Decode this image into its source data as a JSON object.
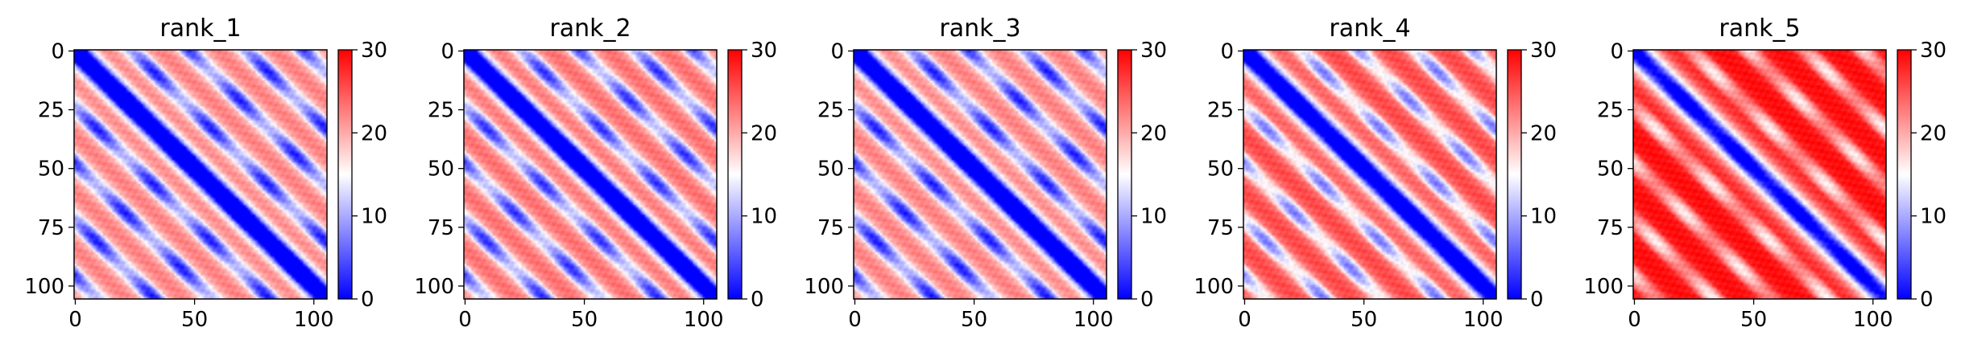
{
  "chart_data": [
    {
      "type": "heatmap",
      "title": "rank_1",
      "n": 106,
      "xticks": [
        0,
        50,
        100
      ],
      "yticks": [
        0,
        25,
        50,
        75,
        100
      ],
      "colorbar": {
        "min": 0,
        "max": 30,
        "ticks": [
          0,
          10,
          20,
          30
        ],
        "colormap": "bwr"
      },
      "pattern": {
        "background": 19,
        "period": 24,
        "band_width": 5,
        "off_diag_low": 6,
        "off_diag_high": 24
      }
    },
    {
      "type": "heatmap",
      "title": "rank_2",
      "n": 106,
      "xticks": [
        0,
        50,
        100
      ],
      "yticks": [
        0,
        25,
        50,
        75,
        100
      ],
      "colorbar": {
        "min": 0,
        "max": 30,
        "ticks": [
          0,
          10,
          20,
          30
        ],
        "colormap": "bwr"
      },
      "pattern": {
        "background": 20,
        "period": 24,
        "band_width": 5,
        "off_diag_low": 7,
        "off_diag_high": 25
      }
    },
    {
      "type": "heatmap",
      "title": "rank_3",
      "n": 106,
      "xticks": [
        0,
        50,
        100
      ],
      "yticks": [
        0,
        25,
        50,
        75,
        100
      ],
      "colorbar": {
        "min": 0,
        "max": 30,
        "ticks": [
          0,
          10,
          20,
          30
        ],
        "colormap": "bwr"
      },
      "pattern": {
        "background": 19,
        "period": 24,
        "band_width": 5,
        "off_diag_low": 6,
        "off_diag_high": 24
      }
    },
    {
      "type": "heatmap",
      "title": "rank_4",
      "n": 106,
      "xticks": [
        0,
        50,
        100
      ],
      "yticks": [
        0,
        25,
        50,
        75,
        100
      ],
      "colorbar": {
        "min": 0,
        "max": 30,
        "ticks": [
          0,
          10,
          20,
          30
        ],
        "colormap": "bwr"
      },
      "pattern": {
        "background": 23,
        "period": 24,
        "band_width": 6,
        "off_diag_low": 11,
        "off_diag_high": 27
      }
    },
    {
      "type": "heatmap",
      "title": "rank_5",
      "n": 106,
      "xticks": [
        0,
        50,
        100
      ],
      "yticks": [
        0,
        25,
        50,
        75,
        100
      ],
      "colorbar": {
        "min": 0,
        "max": 30,
        "ticks": [
          0,
          10,
          20,
          30
        ],
        "colormap": "bwr"
      },
      "pattern": {
        "background": 28,
        "period": 24,
        "band_width": 7,
        "off_diag_low": 19,
        "off_diag_high": 30
      }
    }
  ]
}
